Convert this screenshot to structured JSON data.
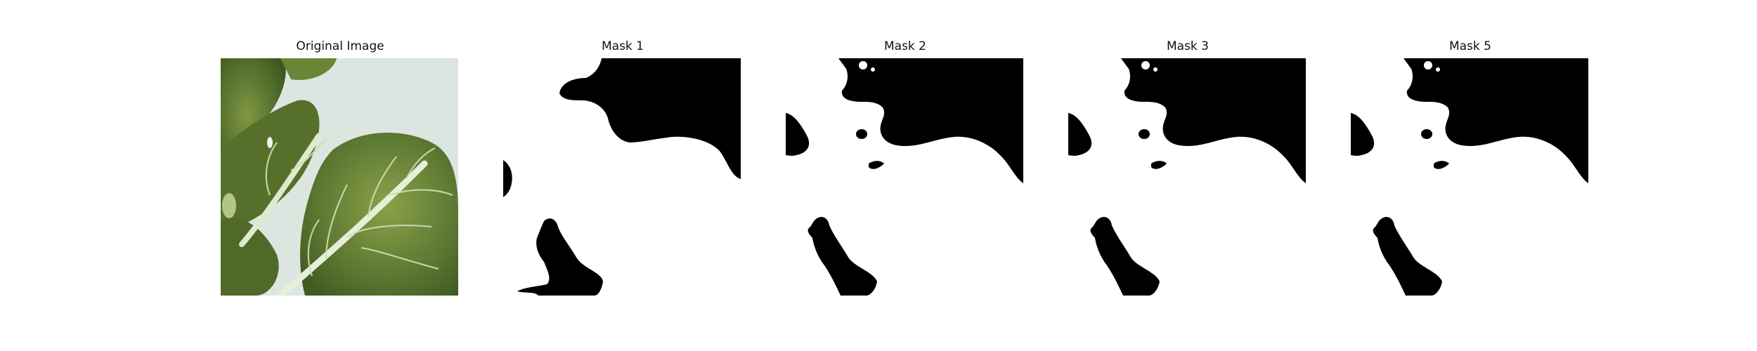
{
  "panels": [
    {
      "title": "Original Image",
      "kind": "photo"
    },
    {
      "title": "Mask 1",
      "kind": "mask"
    },
    {
      "title": "Mask 2",
      "kind": "mask"
    },
    {
      "title": "Mask 3",
      "kind": "mask"
    },
    {
      "title": "Mask 5",
      "kind": "mask"
    }
  ],
  "colors": {
    "background": "#ffffff",
    "mask_foreground": "#ffffff",
    "mask_background": "#000000",
    "leaf_dark": "#4d6b2c",
    "leaf_mid": "#6f8a3c",
    "leaf_light": "#9fb25b",
    "vein": "#e6efd6",
    "backdrop": "#dfe6e2"
  }
}
